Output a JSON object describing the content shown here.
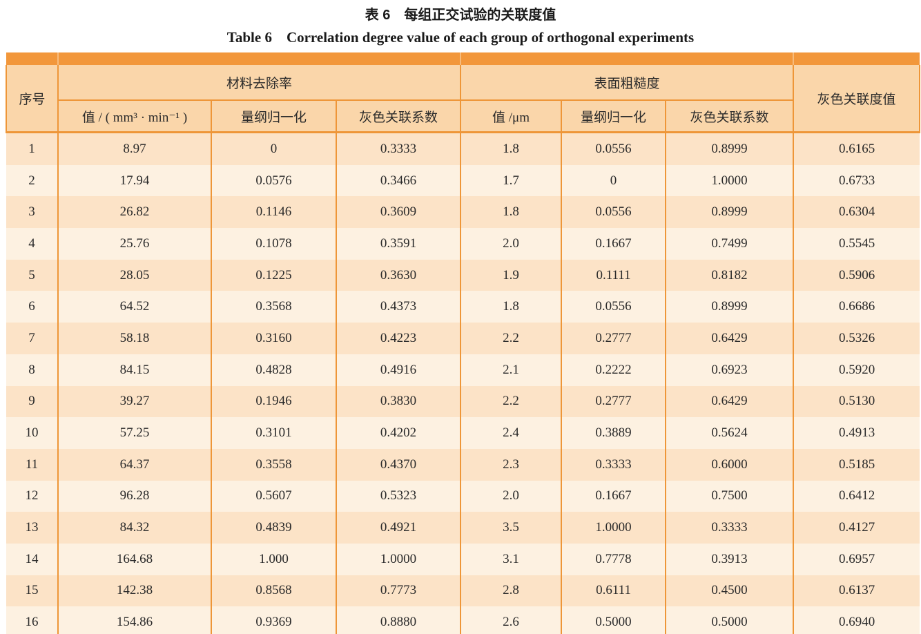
{
  "caption": {
    "zh": "表 6　每组正交试验的关联度值",
    "en": "Table 6　Correlation degree value of each group of orthogonal experiments"
  },
  "table": {
    "corner_header": "序号",
    "groups": [
      {
        "label": "材料去除率",
        "subheaders": [
          "值 / ( mm³ · min⁻¹ )",
          "量纲归一化",
          "灰色关联系数"
        ]
      },
      {
        "label": "表面粗糙度",
        "subheaders": [
          "值 /μm",
          "量纲归一化",
          "灰色关联系数"
        ]
      }
    ],
    "last_header": "灰色关联度值",
    "rows": [
      [
        "1",
        "8.97",
        "0",
        "0.3333",
        "1.8",
        "0.0556",
        "0.8999",
        "0.6165"
      ],
      [
        "2",
        "17.94",
        "0.0576",
        "0.3466",
        "1.7",
        "0",
        "1.0000",
        "0.6733"
      ],
      [
        "3",
        "26.82",
        "0.1146",
        "0.3609",
        "1.8",
        "0.0556",
        "0.8999",
        "0.6304"
      ],
      [
        "4",
        "25.76",
        "0.1078",
        "0.3591",
        "2.0",
        "0.1667",
        "0.7499",
        "0.5545"
      ],
      [
        "5",
        "28.05",
        "0.1225",
        "0.3630",
        "1.9",
        "0.1111",
        "0.8182",
        "0.5906"
      ],
      [
        "6",
        "64.52",
        "0.3568",
        "0.4373",
        "1.8",
        "0.0556",
        "0.8999",
        "0.6686"
      ],
      [
        "7",
        "58.18",
        "0.3160",
        "0.4223",
        "2.2",
        "0.2777",
        "0.6429",
        "0.5326"
      ],
      [
        "8",
        "84.15",
        "0.4828",
        "0.4916",
        "2.1",
        "0.2222",
        "0.6923",
        "0.5920"
      ],
      [
        "9",
        "39.27",
        "0.1946",
        "0.3830",
        "2.2",
        "0.2777",
        "0.6429",
        "0.5130"
      ],
      [
        "10",
        "57.25",
        "0.3101",
        "0.4202",
        "2.4",
        "0.3889",
        "0.5624",
        "0.4913"
      ],
      [
        "11",
        "64.37",
        "0.3558",
        "0.4370",
        "2.3",
        "0.3333",
        "0.6000",
        "0.5185"
      ],
      [
        "12",
        "96.28",
        "0.5607",
        "0.5323",
        "2.0",
        "0.1667",
        "0.7500",
        "0.6412"
      ],
      [
        "13",
        "84.32",
        "0.4839",
        "0.4921",
        "3.5",
        "1.0000",
        "0.3333",
        "0.4127"
      ],
      [
        "14",
        "164.68",
        "1.000",
        "1.0000",
        "3.1",
        "0.7778",
        "0.3913",
        "0.6957"
      ],
      [
        "15",
        "142.38",
        "0.8568",
        "0.7773",
        "2.8",
        "0.6111",
        "0.4500",
        "0.6137"
      ],
      [
        "16",
        "154.86",
        "0.9369",
        "0.8880",
        "2.6",
        "0.5000",
        "0.5000",
        "0.6940"
      ]
    ]
  },
  "colors": {
    "band_orange": "#f2973b",
    "border_orange": "#ee9638",
    "header_bg": "#fad6aa",
    "row_odd_bg": "#fce3c7",
    "row_even_bg": "#fdf1e1"
  }
}
